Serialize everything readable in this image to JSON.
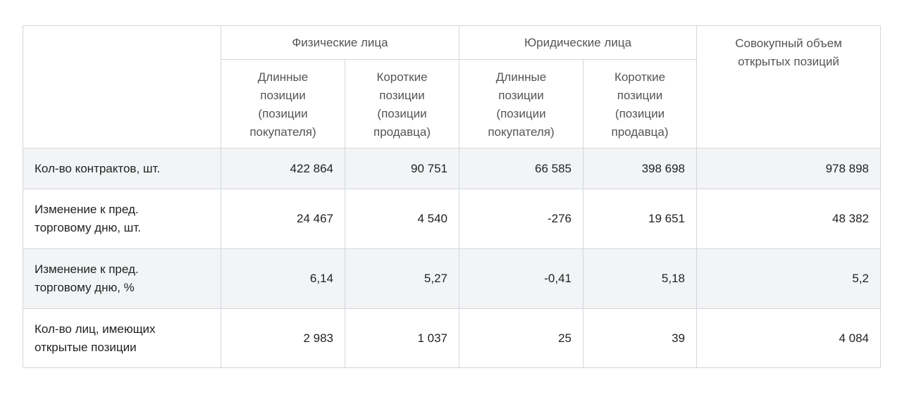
{
  "table": {
    "header": {
      "groups": [
        {
          "label": "Физические лица",
          "columns": [
            "Длинные позиции (позиции покупателя)",
            "Короткие позиции (позиции продавца)"
          ]
        },
        {
          "label": "Юридические лица",
          "columns": [
            "Длинные позиции (позиции покупателя)",
            "Короткие позиции (позиции продавца)"
          ]
        }
      ],
      "total": "Совокупный объем открытых позиций"
    },
    "rows": [
      {
        "label": "Кол-во контрактов, шт.",
        "cells": [
          "422 864",
          "90 751",
          "66 585",
          "398 698",
          "978 898"
        ]
      },
      {
        "label": "Изменение к пред. торговому дню, шт.",
        "cells": [
          "24 467",
          "4 540",
          "-276",
          "19 651",
          "48 382"
        ]
      },
      {
        "label": "Изменение к пред. торговому дню, %",
        "cells": [
          "6,14",
          "5,27",
          "-0,41",
          "5,18",
          "5,2"
        ]
      },
      {
        "label": "Кол-во лиц, имеющих открытые позиции",
        "cells": [
          "2 983",
          "1 037",
          "25",
          "39",
          "4 084"
        ]
      }
    ]
  }
}
